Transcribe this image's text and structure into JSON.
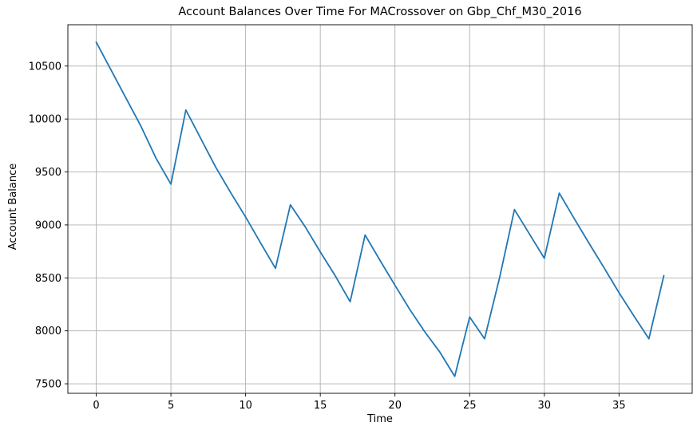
{
  "chart_data": {
    "type": "line",
    "title": "Account Balances Over Time For MACrossover on Gbp_Chf_M30_2016",
    "xlabel": "Time",
    "ylabel": "Account Balance",
    "xlim": [
      -1.9,
      39.9
    ],
    "ylim": [
      7410,
      10890
    ],
    "xticks": [
      0,
      5,
      10,
      15,
      20,
      25,
      30,
      35
    ],
    "yticks": [
      7500,
      8000,
      8500,
      9000,
      9500,
      10000,
      10500
    ],
    "grid": true,
    "series": [
      {
        "color": "#1f77b4",
        "x": [
          0,
          1,
          2,
          3,
          4,
          5,
          6,
          7,
          8,
          9,
          10,
          11,
          12,
          13,
          14,
          15,
          16,
          17,
          18,
          19,
          20,
          21,
          22,
          23,
          24,
          25,
          26,
          27,
          28,
          29,
          30,
          31,
          32,
          33,
          34,
          35,
          36,
          37,
          38
        ],
        "y": [
          10725,
          10460,
          10195,
          9930,
          9630,
          9385,
          10085,
          9815,
          9545,
          9305,
          9075,
          8830,
          8590,
          9190,
          8980,
          8745,
          8520,
          8275,
          8905,
          8665,
          8430,
          8200,
          7990,
          7800,
          7570,
          8130,
          7925,
          8500,
          9145,
          8915,
          8685,
          9300,
          9060,
          8825,
          8595,
          8360,
          8140,
          7925,
          8520
        ]
      }
    ]
  }
}
